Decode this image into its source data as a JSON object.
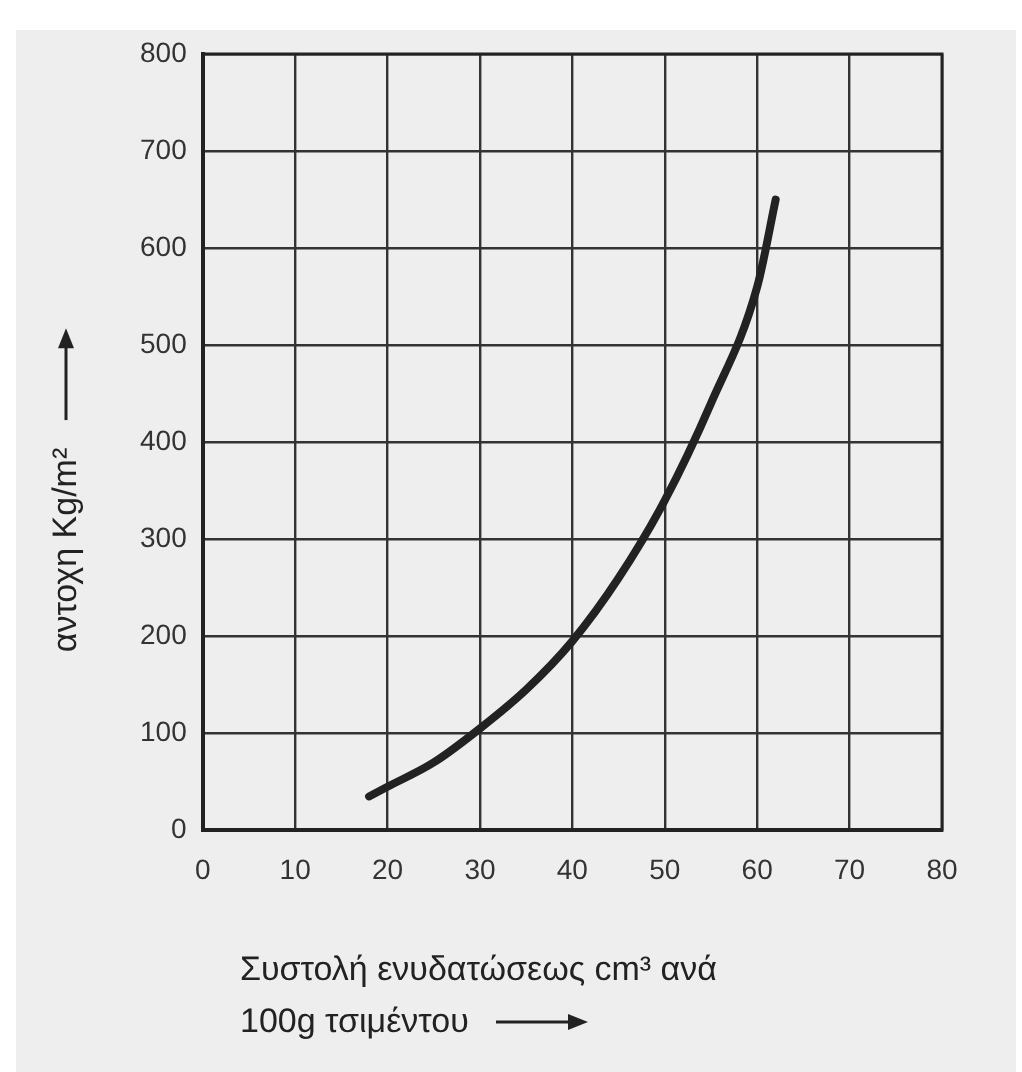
{
  "chart_data": {
    "type": "line",
    "xlabel": "Συστολή ενυδατώσεως cm³ ανά\n100g τσιμέντου",
    "ylabel": "αντοχη  Kg/m²",
    "series": [
      {
        "color": "#222222",
        "x": [
          18,
          20,
          25,
          30,
          35,
          40,
          45,
          50,
          55,
          60,
          62
        ],
        "values": [
          35,
          45,
          70,
          105,
          145,
          195,
          260,
          340,
          440,
          560,
          650
        ]
      }
    ],
    "xlim": [
      0,
      80
    ],
    "xticks": [
      0,
      10,
      20,
      30,
      40,
      50,
      60,
      70,
      80
    ],
    "ylim": [
      0,
      800
    ],
    "yticks": [
      0,
      100,
      200,
      300,
      400,
      500,
      600,
      700,
      800
    ],
    "grid": true,
    "legend": false,
    "marker": "none",
    "line_style": "solid"
  }
}
